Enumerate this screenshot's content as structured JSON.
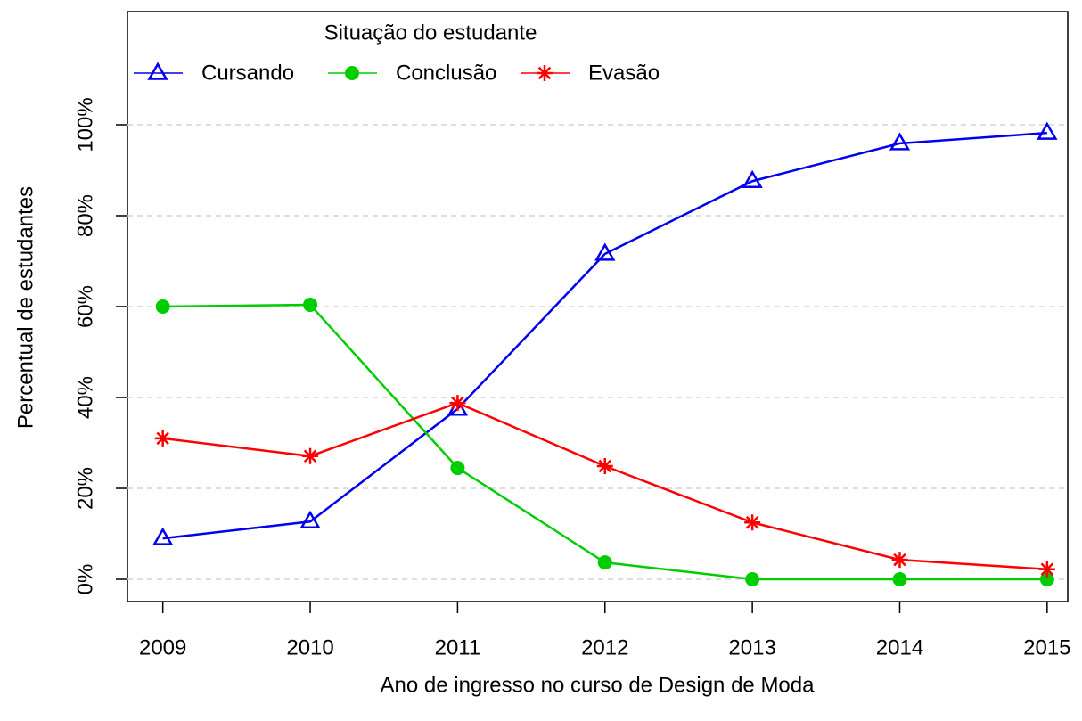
{
  "chart_data": {
    "type": "line",
    "x_label": "Ano de ingresso no curso de Design de Moda",
    "y_label": "Percentual de estudantes",
    "x": [
      2009,
      2010,
      2011,
      2012,
      2013,
      2014,
      2015
    ],
    "xlim": [
      2008.76,
      2015.14
    ],
    "xticks": [
      2009,
      2010,
      2011,
      2012,
      2013,
      2014,
      2015
    ],
    "ylim": [
      -4.9,
      124.9
    ],
    "yticks": [
      {
        "value": 0,
        "label": "0%"
      },
      {
        "value": 20,
        "label": "20%"
      },
      {
        "value": 40,
        "label": "40%"
      },
      {
        "value": 60,
        "label": "60%"
      },
      {
        "value": 80,
        "label": "80%"
      },
      {
        "value": 100,
        "label": "100%"
      }
    ],
    "grid": true,
    "legend_title": "Situação do estudante",
    "legend_position": "top-left",
    "series": [
      {
        "name": "Cursando",
        "color": "#0000ee",
        "marker": "triangle",
        "values": [
          9.0,
          12.7,
          37.5,
          71.6,
          87.6,
          95.9,
          98.2
        ]
      },
      {
        "name": "Conclusão",
        "color": "#00cd00",
        "marker": "circle",
        "values": [
          60.0,
          60.4,
          24.5,
          3.7,
          0,
          0,
          0
        ]
      },
      {
        "name": "Evasão",
        "color": "#ff0000",
        "marker": "asterisk",
        "values": [
          31.0,
          27.1,
          38.8,
          24.9,
          12.5,
          4.3,
          2.2
        ]
      }
    ]
  }
}
